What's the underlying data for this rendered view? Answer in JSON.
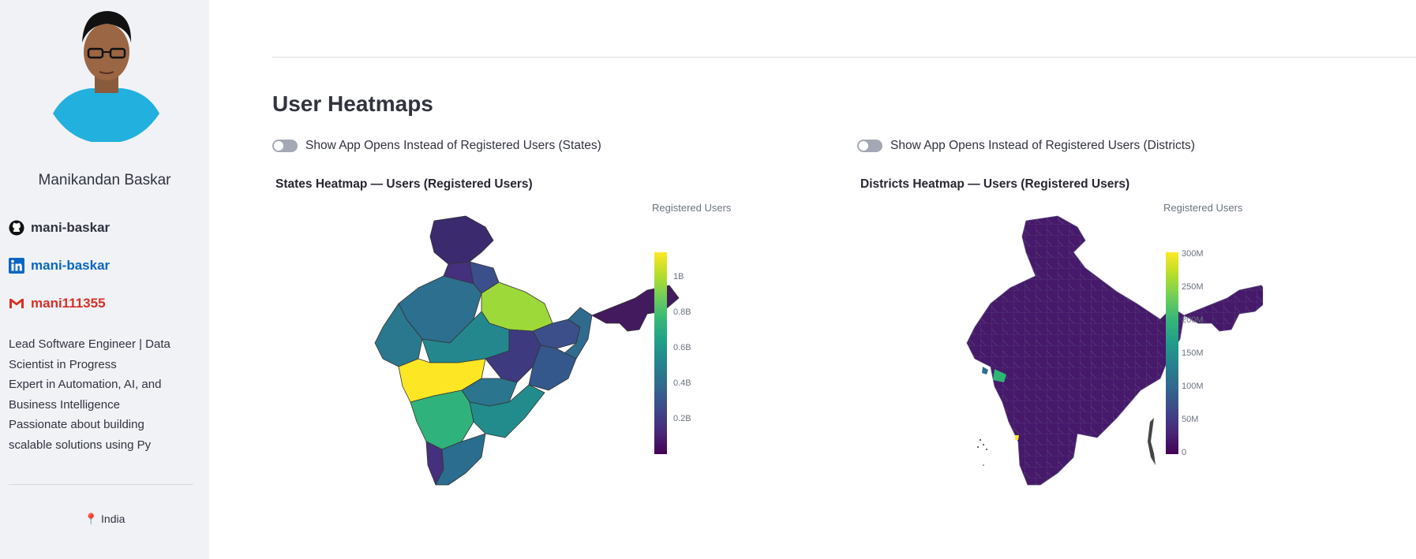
{
  "sidebar": {
    "name": "Manikandan Baskar",
    "links": [
      {
        "icon": "github-icon",
        "label": "mani-baskar",
        "color": "#31333f"
      },
      {
        "icon": "linkedin-icon",
        "label": "mani-baskar",
        "color": "#0a66c2"
      },
      {
        "icon": "gmail-icon",
        "label": "mani111355",
        "color": "#d93025"
      }
    ],
    "bio": [
      "Lead Software Engineer | Data Scientist in Progress",
      "Expert in Automation, AI, and Business Intelligence",
      "Passionate about building scalable solutions using Py"
    ],
    "location": "India",
    "location_icon": "pin-icon"
  },
  "main": {
    "title": "User Heatmaps",
    "toggles": [
      {
        "label": "Show App Opens Instead of Registered Users (States)",
        "on": false
      },
      {
        "label": "Show App Opens Instead of Registered Users (Districts)",
        "on": false
      }
    ]
  },
  "chart_data": [
    {
      "type": "heatmap",
      "title": "States Heatmap — Users (Registered Users)",
      "colorbar_title": "Registered Users",
      "colorscale": "viridis",
      "ticks": [
        "1B",
        "0.8B",
        "0.6B",
        "0.4B",
        "0.2B"
      ],
      "region": "India (states)"
    },
    {
      "type": "heatmap",
      "title": "Districts Heatmap — Users (Registered Users)",
      "colorbar_title": "Registered Users",
      "colorscale": "viridis",
      "ticks": [
        "300M",
        "250M",
        "200M",
        "150M",
        "100M",
        "50M",
        "0"
      ],
      "region": "India (districts)"
    }
  ]
}
